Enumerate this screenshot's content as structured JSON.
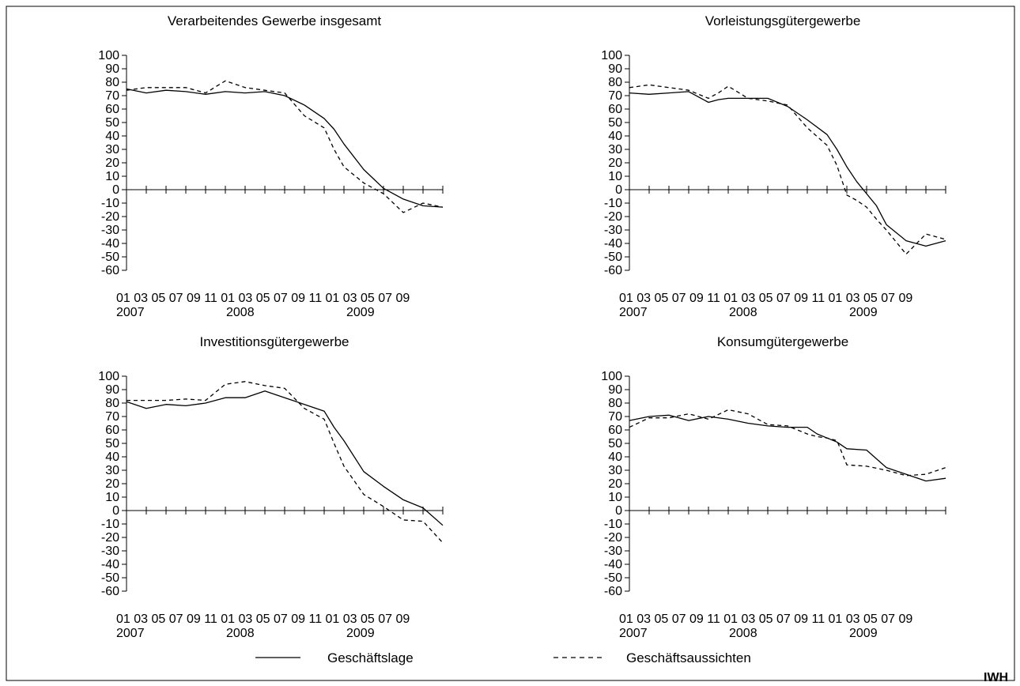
{
  "legend": {
    "solid_label": "Geschäftslage",
    "dashed_label": "Geschäftsaussichten"
  },
  "brand": "IWH",
  "colors": {
    "line": "#000000",
    "background": "#ffffff"
  },
  "axis": {
    "y_ticks": [
      "100",
      "90",
      "80",
      "70",
      "60",
      "50",
      "40",
      "30",
      "20",
      "10",
      "0",
      "-10",
      "-20",
      "-30",
      "-40",
      "-50",
      "-60"
    ],
    "x_month_labels": "01 03 05 07 09 11 01 03 05 07 09 11 01 03 05 07 09",
    "x_year_labels": [
      "2007",
      "2008",
      "2009"
    ]
  },
  "chart_data": [
    {
      "type": "line",
      "title": "Verarbeitendes Gewerbe insgesamt",
      "ylim": [
        -60,
        100
      ],
      "x": [
        "2007-01",
        "2007-03",
        "2007-05",
        "2007-07",
        "2007-09",
        "2007-11",
        "2008-01",
        "2008-03",
        "2008-05",
        "2008-07",
        "2008-09",
        "2008-10",
        "2008-11",
        "2009-01",
        "2009-02",
        "2009-03",
        "2009-05",
        "2009-07",
        "2009-09"
      ],
      "series": [
        {
          "name": "Geschäftslage",
          "style": "solid",
          "values": [
            75,
            72,
            74,
            73,
            71,
            73,
            72,
            73,
            70,
            63,
            53,
            45,
            34,
            15,
            8,
            1,
            -7,
            -12,
            -13
          ]
        },
        {
          "name": "Geschäftsaussichten",
          "style": "dashed",
          "values": [
            74,
            76,
            76,
            76,
            72,
            81,
            76,
            74,
            72,
            55,
            46,
            30,
            17,
            5,
            1,
            -3,
            -17,
            -10,
            -13
          ]
        }
      ]
    },
    {
      "type": "line",
      "title": "Vorleistungsgütergewerbe",
      "ylim": [
        -60,
        100
      ],
      "x": [
        "2007-01",
        "2007-03",
        "2007-05",
        "2007-07",
        "2007-09",
        "2007-10",
        "2007-11",
        "2008-01",
        "2008-03",
        "2008-05",
        "2008-07",
        "2008-09",
        "2008-10",
        "2008-11",
        "2008-12",
        "2009-01",
        "2009-02",
        "2009-03",
        "2009-05",
        "2009-07",
        "2009-09"
      ],
      "series": [
        {
          "name": "Geschäftslage",
          "style": "solid",
          "values": [
            72,
            71,
            72,
            73,
            65,
            67,
            68,
            68,
            68,
            62,
            52,
            41,
            30,
            17,
            6,
            -3,
            -12,
            -26,
            -38,
            -42,
            -38
          ]
        },
        {
          "name": "Geschäftsaussichten",
          "style": "dashed",
          "values": [
            76,
            78,
            76,
            74,
            68,
            72,
            77,
            68,
            66,
            63,
            46,
            33,
            18,
            -4,
            -8,
            -13,
            -22,
            -30,
            -48,
            -33,
            -37
          ]
        }
      ]
    },
    {
      "type": "line",
      "title": "Investitionsgütergewerbe",
      "ylim": [
        -60,
        100
      ],
      "x": [
        "2007-01",
        "2007-03",
        "2007-05",
        "2007-07",
        "2007-09",
        "2007-11",
        "2008-01",
        "2008-03",
        "2008-05",
        "2008-07",
        "2008-09",
        "2008-10",
        "2008-11",
        "2009-01",
        "2009-03",
        "2009-05",
        "2009-07",
        "2009-09"
      ],
      "series": [
        {
          "name": "Geschäftslage",
          "style": "solid",
          "values": [
            81,
            76,
            79,
            78,
            80,
            84,
            84,
            89,
            84,
            79,
            74,
            62,
            52,
            29,
            18,
            8,
            2,
            -11
          ]
        },
        {
          "name": "Geschäftsaussichten",
          "style": "dashed",
          "values": [
            82,
            82,
            82,
            83,
            82,
            94,
            96,
            93,
            91,
            76,
            68,
            50,
            33,
            12,
            3,
            -7,
            -8,
            -24
          ]
        }
      ]
    },
    {
      "type": "line",
      "title": "Konsumgütergewerbe",
      "ylim": [
        -60,
        100
      ],
      "x": [
        "2007-01",
        "2007-03",
        "2007-05",
        "2007-07",
        "2007-09",
        "2007-11",
        "2008-01",
        "2008-03",
        "2008-05",
        "2008-07",
        "2008-08",
        "2008-09",
        "2008-10",
        "2008-11",
        "2009-01",
        "2009-03",
        "2009-05",
        "2009-07",
        "2009-09"
      ],
      "series": [
        {
          "name": "Geschäftslage",
          "style": "solid",
          "values": [
            67,
            70,
            71,
            67,
            70,
            68,
            65,
            63,
            62,
            62,
            57,
            54,
            51,
            46,
            45,
            32,
            27,
            22,
            24
          ]
        },
        {
          "name": "Geschäftsaussichten",
          "style": "dashed",
          "values": [
            62,
            69,
            69,
            72,
            68,
            75,
            72,
            64,
            63,
            57,
            55,
            54,
            52,
            34,
            33,
            30,
            26,
            27,
            32
          ]
        }
      ]
    }
  ]
}
